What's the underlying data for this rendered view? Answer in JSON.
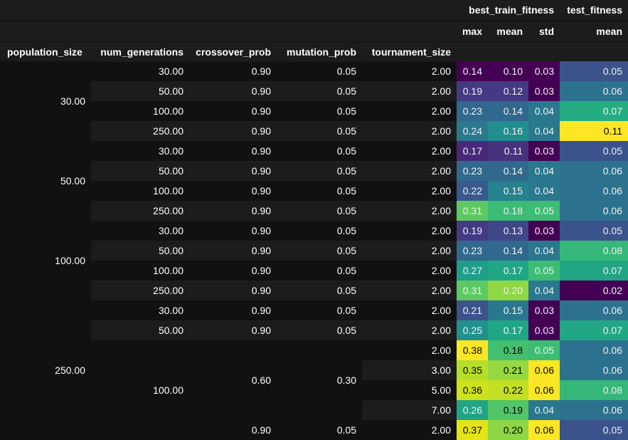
{
  "header": {
    "group_labels": [
      "best_train_fitness",
      "test_fitness"
    ],
    "stat_labels": [
      "max",
      "mean",
      "std",
      "mean"
    ],
    "index_names": [
      "population_size",
      "num_generations",
      "crossover_prob",
      "mutation_prob",
      "tournament_size"
    ]
  },
  "rows": [
    {
      "num_generations": "30.00",
      "crossover_prob": "0.90",
      "mutation_prob": "0.05",
      "tournament_size": "2.00",
      "train_max": "0.14",
      "train_mean": "0.10",
      "train_std": "0.03",
      "test_mean": "0.05"
    },
    {
      "num_generations": "50.00",
      "crossover_prob": "0.90",
      "mutation_prob": "0.05",
      "tournament_size": "2.00",
      "train_max": "0.19",
      "train_mean": "0.12",
      "train_std": "0.03",
      "test_mean": "0.06"
    },
    {
      "num_generations": "100.00",
      "crossover_prob": "0.90",
      "mutation_prob": "0.05",
      "tournament_size": "2.00",
      "train_max": "0.23",
      "train_mean": "0.14",
      "train_std": "0.04",
      "test_mean": "0.07"
    },
    {
      "num_generations": "250.00",
      "crossover_prob": "0.90",
      "mutation_prob": "0.05",
      "tournament_size": "2.00",
      "train_max": "0.24",
      "train_mean": "0.16",
      "train_std": "0.04",
      "test_mean": "0.11"
    },
    {
      "num_generations": "30.00",
      "crossover_prob": "0.90",
      "mutation_prob": "0.05",
      "tournament_size": "2.00",
      "train_max": "0.17",
      "train_mean": "0.11",
      "train_std": "0.03",
      "test_mean": "0.05"
    },
    {
      "num_generations": "50.00",
      "crossover_prob": "0.90",
      "mutation_prob": "0.05",
      "tournament_size": "2.00",
      "train_max": "0.23",
      "train_mean": "0.14",
      "train_std": "0.04",
      "test_mean": "0.06"
    },
    {
      "num_generations": "100.00",
      "crossover_prob": "0.90",
      "mutation_prob": "0.05",
      "tournament_size": "2.00",
      "train_max": "0.22",
      "train_mean": "0.15",
      "train_std": "0.04",
      "test_mean": "0.06"
    },
    {
      "num_generations": "250.00",
      "crossover_prob": "0.90",
      "mutation_prob": "0.05",
      "tournament_size": "2.00",
      "train_max": "0.31",
      "train_mean": "0.18",
      "train_std": "0.05",
      "test_mean": "0.06"
    },
    {
      "num_generations": "30.00",
      "crossover_prob": "0.90",
      "mutation_prob": "0.05",
      "tournament_size": "2.00",
      "train_max": "0.19",
      "train_mean": "0.13",
      "train_std": "0.03",
      "test_mean": "0.05"
    },
    {
      "num_generations": "50.00",
      "crossover_prob": "0.90",
      "mutation_prob": "0.05",
      "tournament_size": "2.00",
      "train_max": "0.23",
      "train_mean": "0.14",
      "train_std": "0.04",
      "test_mean": "0.08"
    },
    {
      "num_generations": "100.00",
      "crossover_prob": "0.90",
      "mutation_prob": "0.05",
      "tournament_size": "2.00",
      "train_max": "0.27",
      "train_mean": "0.17",
      "train_std": "0.05",
      "test_mean": "0.07"
    },
    {
      "num_generations": "250.00",
      "crossover_prob": "0.90",
      "mutation_prob": "0.05",
      "tournament_size": "2.00",
      "train_max": "0.31",
      "train_mean": "0.20",
      "train_std": "0.04",
      "test_mean": "0.02"
    },
    {
      "num_generations": "30.00",
      "crossover_prob": "0.90",
      "mutation_prob": "0.05",
      "tournament_size": "2.00",
      "train_max": "0.21",
      "train_mean": "0.15",
      "train_std": "0.03",
      "test_mean": "0.06"
    },
    {
      "num_generations": "50.00",
      "crossover_prob": "0.90",
      "mutation_prob": "0.05",
      "tournament_size": "2.00",
      "train_max": "0.25",
      "train_mean": "0.17",
      "train_std": "0.03",
      "test_mean": "0.07"
    },
    {
      "num_generations": "100.00",
      "crossover_prob": "0.60",
      "mutation_prob": "0.30",
      "tournament_size": "2.00",
      "train_max": "0.38",
      "train_mean": "0.18",
      "train_std": "0.05",
      "test_mean": "0.06"
    },
    {
      "num_generations": "100.00",
      "crossover_prob": "0.60",
      "mutation_prob": "0.30",
      "tournament_size": "3.00",
      "train_max": "0.35",
      "train_mean": "0.21",
      "train_std": "0.06",
      "test_mean": "0.06"
    },
    {
      "num_generations": "100.00",
      "crossover_prob": "0.60",
      "mutation_prob": "0.30",
      "tournament_size": "5.00",
      "train_max": "0.36",
      "train_mean": "0.22",
      "train_std": "0.06",
      "test_mean": "0.08"
    },
    {
      "num_generations": "100.00",
      "crossover_prob": "0.60",
      "mutation_prob": "0.30",
      "tournament_size": "7.00",
      "train_max": "0.26",
      "train_mean": "0.19",
      "train_std": "0.04",
      "test_mean": "0.06"
    },
    {
      "num_generations": "100.00",
      "crossover_prob": "0.90",
      "mutation_prob": "0.05",
      "tournament_size": "2.00",
      "train_max": "0.37",
      "train_mean": "0.20",
      "train_std": "0.06",
      "test_mean": "0.05"
    }
  ],
  "population_groups": [
    {
      "label": "30.00",
      "start": 0,
      "count": 4
    },
    {
      "label": "50.00",
      "start": 4,
      "count": 4
    },
    {
      "label": "100.00",
      "start": 8,
      "count": 4
    },
    {
      "label": "250.00",
      "start": 12,
      "count": 7
    }
  ],
  "spans": {
    "num_generations": {
      "label": "100.00",
      "start": 14,
      "count": 5
    },
    "crossover_prob": {
      "label": "0.60",
      "start": 14,
      "count": 4
    },
    "mutation_prob": {
      "label": "0.30",
      "start": 14,
      "count": 4
    }
  },
  "heat": {
    "colors": {
      "train_max": [
        "#440154",
        "#443a83",
        "#31688e",
        "#2a788e",
        "#482878",
        "#31688e",
        "#38598c",
        "#5ec962",
        "#443a83",
        "#31688e",
        "#1f9e89",
        "#5ec962",
        "#3b528b",
        "#21918c",
        "#fde725",
        "#b5de2b",
        "#cde11d",
        "#20a486",
        "#e5e419"
      ],
      "train_mean": [
        "#440154",
        "#443983",
        "#31688e",
        "#218f8d",
        "#46327e",
        "#31688e",
        "#26828e",
        "#3bbb75",
        "#3f4788",
        "#31688e",
        "#21a685",
        "#8fd744",
        "#2a788e",
        "#21a685",
        "#44bf70",
        "#95d840",
        "#c2df23",
        "#52c569",
        "#8ed645"
      ],
      "train_std": [
        "#440154",
        "#440154",
        "#2a788e",
        "#2a788e",
        "#440154",
        "#2a788e",
        "#2a788e",
        "#3dbc74",
        "#440154",
        "#2a788e",
        "#3dbc74",
        "#2a788e",
        "#440154",
        "#440154",
        "#3dbc74",
        "#fde725",
        "#fde725",
        "#2a788e",
        "#fde725"
      ],
      "test_mean": [
        "#3b528b",
        "#2c728e",
        "#25ac82",
        "#fde725",
        "#3b528b",
        "#2c728e",
        "#2c728e",
        "#2c728e",
        "#3b528b",
        "#35b779",
        "#21a585",
        "#440154",
        "#2c728e",
        "#22a785",
        "#2c728e",
        "#2c728e",
        "#35b779",
        "#2c728e",
        "#3b528b"
      ]
    },
    "dark_text_cells": {
      "train_max": [
        14,
        15,
        16,
        18
      ],
      "train_mean": [
        14,
        15,
        16,
        17,
        18
      ],
      "train_std": [
        15,
        16,
        18
      ],
      "test_mean": [
        3
      ]
    }
  }
}
